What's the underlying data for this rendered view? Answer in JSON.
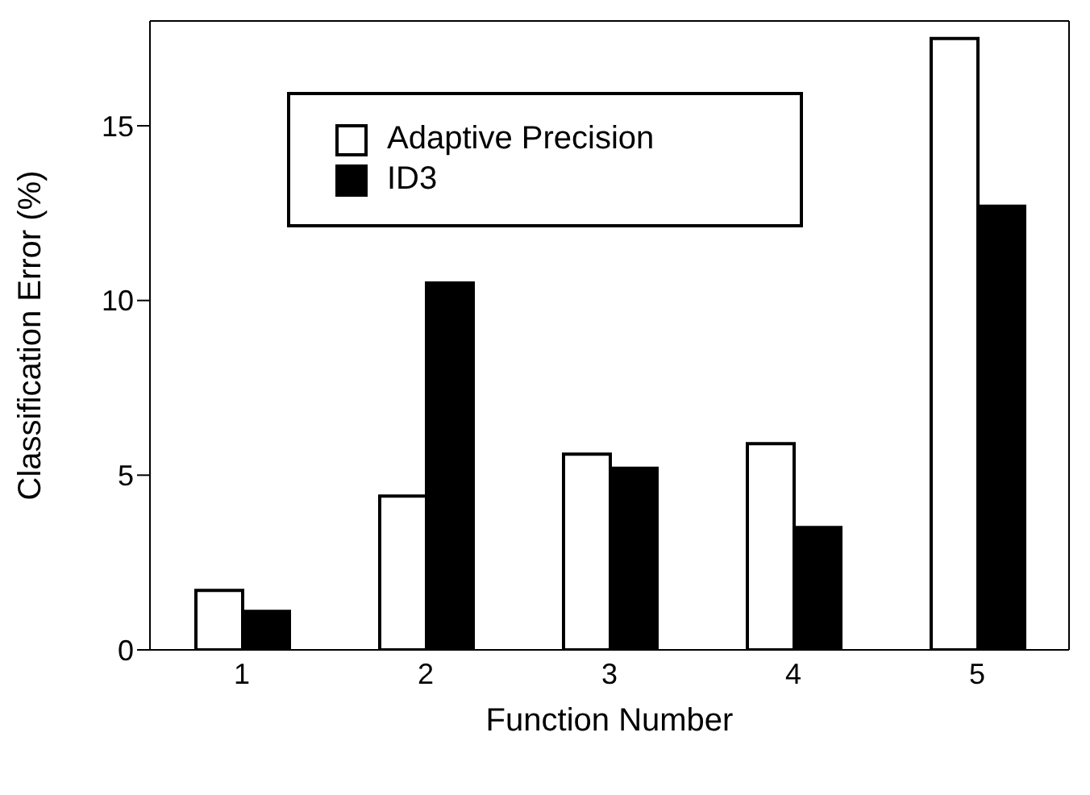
{
  "chart_data": {
    "type": "bar",
    "xlabel": "Function Number",
    "ylabel": "Classification Error (%)",
    "categories": [
      "1",
      "2",
      "3",
      "4",
      "5"
    ],
    "series": [
      {
        "name": "Adaptive Precision",
        "color": "#ffffff",
        "values": [
          1.7,
          4.4,
          5.6,
          5.9,
          17.5
        ]
      },
      {
        "name": "ID3",
        "color": "#000000",
        "values": [
          1.1,
          10.5,
          5.2,
          3.5,
          12.7
        ]
      }
    ],
    "ylim": [
      0,
      18
    ],
    "yticks": [
      0,
      5,
      10,
      15
    ],
    "legend": "top left"
  }
}
